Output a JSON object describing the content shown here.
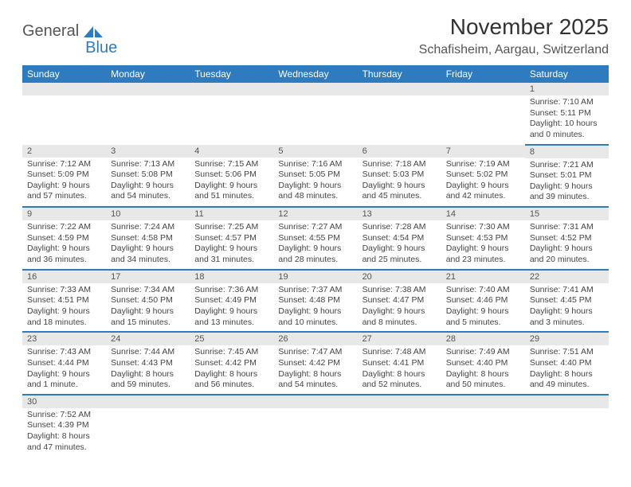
{
  "logo": {
    "text1": "General",
    "text2": "Blue"
  },
  "title": "November 2025",
  "location": "Schafisheim, Aargau, Switzerland",
  "colors": {
    "header_bg": "#2f7bbf",
    "header_text": "#ffffff",
    "daynum_bg": "#e8e8e8",
    "border": "#2f7bbf",
    "body_text": "#444444"
  },
  "weekdays": [
    "Sunday",
    "Monday",
    "Tuesday",
    "Wednesday",
    "Thursday",
    "Friday",
    "Saturday"
  ],
  "weeks": [
    [
      null,
      null,
      null,
      null,
      null,
      null,
      {
        "n": "1",
        "r": "7:10 AM",
        "s": "5:11 PM",
        "d": "10 hours and 0 minutes."
      }
    ],
    [
      {
        "n": "2",
        "r": "7:12 AM",
        "s": "5:09 PM",
        "d": "9 hours and 57 minutes."
      },
      {
        "n": "3",
        "r": "7:13 AM",
        "s": "5:08 PM",
        "d": "9 hours and 54 minutes."
      },
      {
        "n": "4",
        "r": "7:15 AM",
        "s": "5:06 PM",
        "d": "9 hours and 51 minutes."
      },
      {
        "n": "5",
        "r": "7:16 AM",
        "s": "5:05 PM",
        "d": "9 hours and 48 minutes."
      },
      {
        "n": "6",
        "r": "7:18 AM",
        "s": "5:03 PM",
        "d": "9 hours and 45 minutes."
      },
      {
        "n": "7",
        "r": "7:19 AM",
        "s": "5:02 PM",
        "d": "9 hours and 42 minutes."
      },
      {
        "n": "8",
        "r": "7:21 AM",
        "s": "5:01 PM",
        "d": "9 hours and 39 minutes."
      }
    ],
    [
      {
        "n": "9",
        "r": "7:22 AM",
        "s": "4:59 PM",
        "d": "9 hours and 36 minutes."
      },
      {
        "n": "10",
        "r": "7:24 AM",
        "s": "4:58 PM",
        "d": "9 hours and 34 minutes."
      },
      {
        "n": "11",
        "r": "7:25 AM",
        "s": "4:57 PM",
        "d": "9 hours and 31 minutes."
      },
      {
        "n": "12",
        "r": "7:27 AM",
        "s": "4:55 PM",
        "d": "9 hours and 28 minutes."
      },
      {
        "n": "13",
        "r": "7:28 AM",
        "s": "4:54 PM",
        "d": "9 hours and 25 minutes."
      },
      {
        "n": "14",
        "r": "7:30 AM",
        "s": "4:53 PM",
        "d": "9 hours and 23 minutes."
      },
      {
        "n": "15",
        "r": "7:31 AM",
        "s": "4:52 PM",
        "d": "9 hours and 20 minutes."
      }
    ],
    [
      {
        "n": "16",
        "r": "7:33 AM",
        "s": "4:51 PM",
        "d": "9 hours and 18 minutes."
      },
      {
        "n": "17",
        "r": "7:34 AM",
        "s": "4:50 PM",
        "d": "9 hours and 15 minutes."
      },
      {
        "n": "18",
        "r": "7:36 AM",
        "s": "4:49 PM",
        "d": "9 hours and 13 minutes."
      },
      {
        "n": "19",
        "r": "7:37 AM",
        "s": "4:48 PM",
        "d": "9 hours and 10 minutes."
      },
      {
        "n": "20",
        "r": "7:38 AM",
        "s": "4:47 PM",
        "d": "9 hours and 8 minutes."
      },
      {
        "n": "21",
        "r": "7:40 AM",
        "s": "4:46 PM",
        "d": "9 hours and 5 minutes."
      },
      {
        "n": "22",
        "r": "7:41 AM",
        "s": "4:45 PM",
        "d": "9 hours and 3 minutes."
      }
    ],
    [
      {
        "n": "23",
        "r": "7:43 AM",
        "s": "4:44 PM",
        "d": "9 hours and 1 minute."
      },
      {
        "n": "24",
        "r": "7:44 AM",
        "s": "4:43 PM",
        "d": "8 hours and 59 minutes."
      },
      {
        "n": "25",
        "r": "7:45 AM",
        "s": "4:42 PM",
        "d": "8 hours and 56 minutes."
      },
      {
        "n": "26",
        "r": "7:47 AM",
        "s": "4:42 PM",
        "d": "8 hours and 54 minutes."
      },
      {
        "n": "27",
        "r": "7:48 AM",
        "s": "4:41 PM",
        "d": "8 hours and 52 minutes."
      },
      {
        "n": "28",
        "r": "7:49 AM",
        "s": "4:40 PM",
        "d": "8 hours and 50 minutes."
      },
      {
        "n": "29",
        "r": "7:51 AM",
        "s": "4:40 PM",
        "d": "8 hours and 49 minutes."
      }
    ],
    [
      {
        "n": "30",
        "r": "7:52 AM",
        "s": "4:39 PM",
        "d": "8 hours and 47 minutes."
      },
      null,
      null,
      null,
      null,
      null,
      null
    ]
  ],
  "labels": {
    "sunrise": "Sunrise: ",
    "sunset": "Sunset: ",
    "daylight": "Daylight: "
  }
}
